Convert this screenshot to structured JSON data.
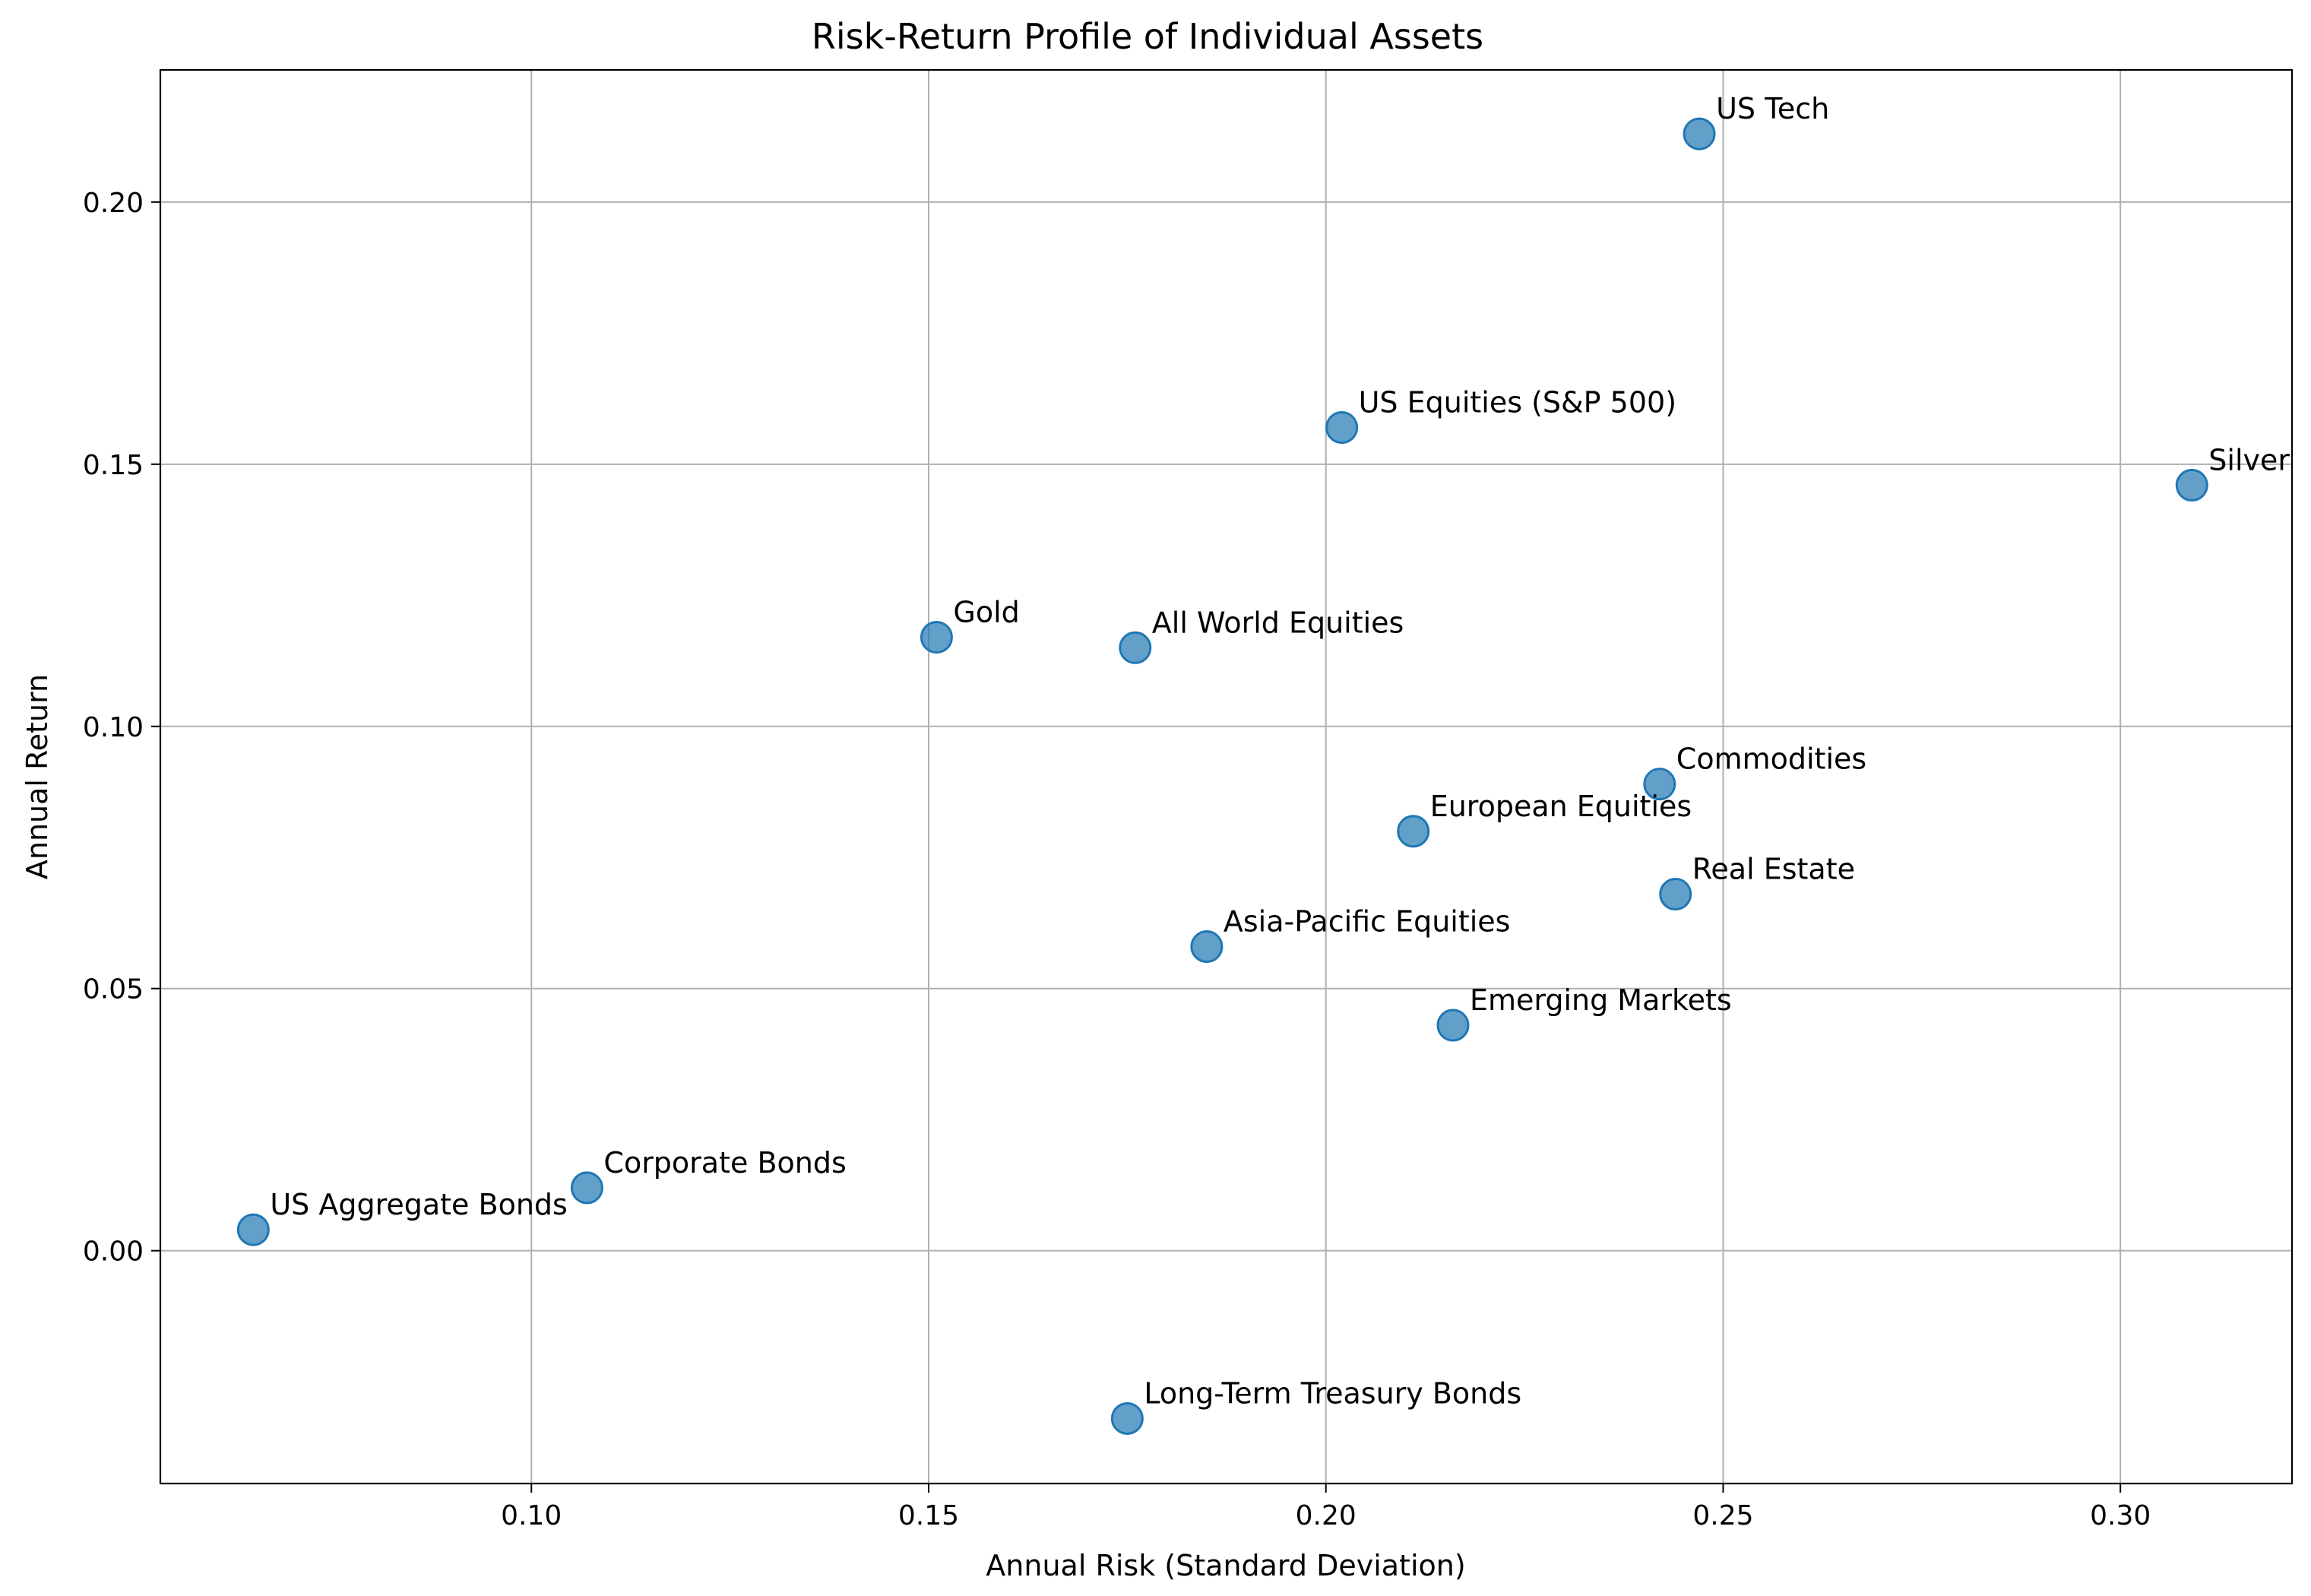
{
  "chart_data": {
    "type": "scatter",
    "title": "Risk-Return Profile of Individual Assets",
    "xlabel": "Annual Risk (Standard Deviation)",
    "ylabel": "Annual Return",
    "xlim": [
      0.0533,
      0.3216
    ],
    "ylim": [
      -0.0444,
      0.2252
    ],
    "x_ticks": [
      0.1,
      0.15,
      0.2,
      0.25,
      0.3
    ],
    "x_tick_labels": [
      "0.10",
      "0.15",
      "0.20",
      "0.25",
      "0.30"
    ],
    "y_ticks": [
      0.0,
      0.05,
      0.1,
      0.15,
      0.2
    ],
    "y_tick_labels": [
      "0.00",
      "0.05",
      "0.10",
      "0.15",
      "0.20"
    ],
    "grid": true,
    "point_color": "#1f77b4",
    "point_opacity": 0.7,
    "points": [
      {
        "label": "US Tech",
        "x": 0.247,
        "y": 0.213
      },
      {
        "label": "US Equities (S&P 500)",
        "x": 0.202,
        "y": 0.157
      },
      {
        "label": "Silver",
        "x": 0.309,
        "y": 0.146
      },
      {
        "label": "Gold",
        "x": 0.151,
        "y": 0.117
      },
      {
        "label": "All World Equities",
        "x": 0.176,
        "y": 0.115
      },
      {
        "label": "Commodities",
        "x": 0.242,
        "y": 0.089
      },
      {
        "label": "European Equities",
        "x": 0.211,
        "y": 0.08
      },
      {
        "label": "Real Estate",
        "x": 0.244,
        "y": 0.068
      },
      {
        "label": "Asia-Pacific Equities",
        "x": 0.185,
        "y": 0.058
      },
      {
        "label": "Emerging Markets",
        "x": 0.216,
        "y": 0.043
      },
      {
        "label": "Corporate Bonds",
        "x": 0.107,
        "y": 0.012
      },
      {
        "label": "US Aggregate Bonds",
        "x": 0.065,
        "y": 0.004
      },
      {
        "label": "Long-Term Treasury Bonds",
        "x": 0.175,
        "y": -0.032
      }
    ]
  }
}
